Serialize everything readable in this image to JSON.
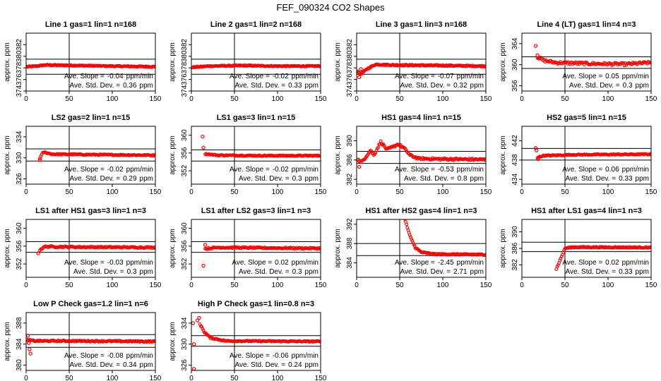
{
  "figure_title": "FEF_090324  CO2 Shapes",
  "chart_data": [
    {
      "type": "scatter",
      "title": "Line 1 gas=1 lin=1 n=168",
      "ylabel": "approx. ppm",
      "xlim": [
        0,
        150
      ],
      "ylim": [
        374,
        384
      ],
      "yticks": [
        374,
        376,
        378,
        380,
        382
      ],
      "xticks": [
        0,
        50,
        100,
        150
      ],
      "hlines": [
        376.9,
        379.5
      ],
      "vline": 50,
      "series_color": "#ff0000",
      "x_start": 1,
      "x_end": 150,
      "n_points": 168,
      "profile": [
        [
          1,
          378.2
        ],
        [
          12,
          378.3
        ],
        [
          22,
          378.5
        ],
        [
          60,
          378.4
        ],
        [
          100,
          378.3
        ],
        [
          150,
          378.2
        ]
      ],
      "noise": 0.08,
      "outliers": [],
      "slope_label": "Ave. Slope =",
      "slope_value": "-0.04",
      "slope_unit": "ppm/min",
      "sd_label": "Ave. Std. Dev. =",
      "sd_value": "0.36",
      "sd_unit": "ppm"
    },
    {
      "type": "scatter",
      "title": "Line 2 gas=1 lin=2 n=168",
      "ylabel": "approx. ppm",
      "xlim": [
        0,
        150
      ],
      "ylim": [
        374,
        384
      ],
      "yticks": [
        374,
        376,
        378,
        380,
        382
      ],
      "xticks": [
        0,
        50,
        100,
        150
      ],
      "hlines": [
        376.9,
        379.5
      ],
      "vline": 50,
      "series_color": "#ff0000",
      "x_start": 1,
      "x_end": 150,
      "n_points": 168,
      "profile": [
        [
          1,
          378.1
        ],
        [
          20,
          378.3
        ],
        [
          60,
          378.4
        ],
        [
          100,
          378.3
        ],
        [
          150,
          378.3
        ]
      ],
      "noise": 0.08,
      "outliers": [],
      "slope_label": "Ave. Slope =",
      "slope_value": "-0.02",
      "slope_unit": "ppm/min",
      "sd_label": "Ave. Std. Dev. =",
      "sd_value": "0.33",
      "sd_unit": "ppm"
    },
    {
      "type": "scatter",
      "title": "Line 3 gas=1 lin=3 n=168",
      "ylabel": "approx. ppm",
      "xlim": [
        0,
        150
      ],
      "ylim": [
        374,
        384
      ],
      "yticks": [
        374,
        376,
        378,
        380,
        382
      ],
      "xticks": [
        0,
        50,
        100,
        150
      ],
      "hlines": [
        376.9,
        379.5
      ],
      "vline": 50,
      "series_color": "#ff0000",
      "x_start": 1,
      "x_end": 150,
      "n_points": 168,
      "profile": [
        [
          1,
          377.5
        ],
        [
          4,
          376.9
        ],
        [
          7,
          377.2
        ],
        [
          12,
          377.8
        ],
        [
          22,
          378.6
        ],
        [
          40,
          378.5
        ],
        [
          100,
          378.4
        ],
        [
          150,
          378.3
        ]
      ],
      "noise": 0.1,
      "outliers": [
        [
          3,
          376.4
        ],
        [
          5,
          377.8
        ]
      ],
      "slope_label": "Ave. Slope =",
      "slope_value": "-0.07",
      "slope_unit": "ppm/min",
      "sd_label": "Ave. Std. Dev. =",
      "sd_value": "0.32",
      "sd_unit": "ppm"
    },
    {
      "type": "scatter",
      "title": "Line 4 (LT) gas=1 lin=4 n=3",
      "ylabel": "approx. ppm",
      "xlim": [
        0,
        150
      ],
      "ylim": [
        355,
        366
      ],
      "yticks": [
        356,
        360,
        364
      ],
      "xticks": [
        0,
        50,
        100,
        150
      ],
      "hlines": [
        359.3,
        361.5
      ],
      "vline": 50,
      "series_color": "#ff0000",
      "x_start": 18,
      "x_end": 150,
      "n_points": 120,
      "profile": [
        [
          18,
          361.5
        ],
        [
          25,
          360.8
        ],
        [
          40,
          360.4
        ],
        [
          80,
          360.2
        ],
        [
          120,
          360.1
        ],
        [
          150,
          360.4
        ]
      ],
      "noise": 0.25,
      "outliers": [
        [
          16,
          363.6
        ],
        [
          18,
          361.8
        ],
        [
          20,
          361.2
        ]
      ],
      "slope_label": "Ave. Slope =",
      "slope_value": "0.05",
      "slope_unit": "ppm/min",
      "sd_label": "Ave. Std. Dev. =",
      "sd_value": "0.3",
      "sd_unit": "ppm"
    },
    {
      "type": "scatter",
      "title": "LS2 gas=2 lin=1 n=15",
      "ylabel": "approx. ppm",
      "xlim": [
        0,
        150
      ],
      "ylim": [
        325,
        336
      ],
      "yticks": [
        326,
        330,
        334
      ],
      "xticks": [
        0,
        50,
        100,
        150
      ],
      "hlines": [
        329.4,
        331.7
      ],
      "vline": 50,
      "series_color": "#ff0000",
      "x_start": 16,
      "x_end": 150,
      "n_points": 120,
      "profile": [
        [
          16,
          330.0
        ],
        [
          20,
          331.1
        ],
        [
          30,
          330.7
        ],
        [
          80,
          330.6
        ],
        [
          150,
          330.5
        ]
      ],
      "noise": 0.1,
      "outliers": [
        [
          16,
          329.6
        ]
      ],
      "slope_label": "Ave. Slope =",
      "slope_value": "-0.02",
      "slope_unit": "ppm/min",
      "sd_label": "Ave. Std. Dev. =",
      "sd_value": "0.29",
      "sd_unit": "ppm"
    },
    {
      "type": "scatter",
      "title": "LS1 gas=3 lin=1 n=15",
      "ylabel": "approx. ppm",
      "xlim": [
        0,
        150
      ],
      "ylim": [
        349,
        362
      ],
      "yticks": [
        352,
        356,
        360
      ],
      "xticks": [
        0,
        50,
        100,
        150
      ],
      "hlines": [
        354.2,
        356.7
      ],
      "vline": 50,
      "series_color": "#ff0000",
      "x_start": 16,
      "x_end": 150,
      "n_points": 120,
      "profile": [
        [
          16,
          355.8
        ],
        [
          30,
          355.5
        ],
        [
          80,
          355.4
        ],
        [
          150,
          355.4
        ]
      ],
      "noise": 0.1,
      "outliers": [
        [
          13,
          359.7
        ],
        [
          14,
          357.2
        ]
      ],
      "slope_label": "Ave. Slope =",
      "slope_value": "-0.02",
      "slope_unit": "ppm/min",
      "sd_label": "Ave. Std. Dev. =",
      "sd_value": "0.3",
      "sd_unit": "ppm"
    },
    {
      "type": "scatter",
      "title": "HS1 gas=4 lin=1 n=15",
      "ylabel": "approx. ppm",
      "xlim": [
        0,
        150
      ],
      "ylim": [
        381,
        393
      ],
      "yticks": [
        382,
        386,
        390
      ],
      "xticks": [
        0,
        50,
        100,
        150
      ],
      "hlines": [
        385.3,
        387.8
      ],
      "vline": 50,
      "series_color": "#ff0000",
      "x_start": 1,
      "x_end": 150,
      "n_points": 150,
      "profile": [
        [
          1,
          386.2
        ],
        [
          5,
          385.5
        ],
        [
          10,
          386.5
        ],
        [
          16,
          388.0
        ],
        [
          20,
          387.0
        ],
        [
          28,
          389.8
        ],
        [
          35,
          388.2
        ],
        [
          42,
          388.7
        ],
        [
          48,
          389.3
        ],
        [
          55,
          388.5
        ],
        [
          62,
          387.0
        ],
        [
          72,
          386.3
        ],
        [
          100,
          386.2
        ],
        [
          150,
          386.1
        ]
      ],
      "noise": 0.2,
      "outliers": [
        [
          3,
          384.6
        ]
      ],
      "slope_label": "Ave. Slope =",
      "slope_value": "-0.53",
      "slope_unit": "ppm/min",
      "sd_label": "Ave. Std. Dev. =",
      "sd_value": "0.8",
      "sd_unit": "ppm"
    },
    {
      "type": "scatter",
      "title": "HS2 gas=5 lin=1 n=15",
      "ylabel": "approx. ppm",
      "xlim": [
        0,
        150
      ],
      "ylim": [
        433,
        445
      ],
      "yticks": [
        434,
        438,
        442
      ],
      "xticks": [
        0,
        50,
        100,
        150
      ],
      "hlines": [
        438.0,
        440.4
      ],
      "vline": 50,
      "series_color": "#ff0000",
      "x_start": 18,
      "x_end": 150,
      "n_points": 120,
      "profile": [
        [
          18,
          438.5
        ],
        [
          25,
          438.9
        ],
        [
          60,
          439.1
        ],
        [
          150,
          439.2
        ]
      ],
      "noise": 0.1,
      "outliers": [
        [
          16,
          440.5
        ],
        [
          17,
          440.0
        ],
        [
          19,
          438.2
        ]
      ],
      "slope_label": "Ave. Slope =",
      "slope_value": "0.06",
      "slope_unit": "ppm/min",
      "sd_label": "Ave. Std. Dev. =",
      "sd_value": "0.33",
      "sd_unit": "ppm"
    },
    {
      "type": "scatter",
      "title": "LS1 after HS1 gas=3 lin=1 n=3",
      "ylabel": "approx. ppm",
      "xlim": [
        0,
        150
      ],
      "ylim": [
        349,
        362
      ],
      "yticks": [
        352,
        356,
        360
      ],
      "xticks": [
        0,
        50,
        100,
        150
      ],
      "hlines": [
        354.6,
        357.0
      ],
      "vline": 50,
      "series_color": "#ff0000",
      "x_start": 16,
      "x_end": 150,
      "n_points": 120,
      "profile": [
        [
          16,
          355.2
        ],
        [
          22,
          355.9
        ],
        [
          60,
          355.8
        ],
        [
          150,
          355.7
        ]
      ],
      "noise": 0.15,
      "outliers": [
        [
          14,
          354.4
        ]
      ],
      "slope_label": "Ave. Slope =",
      "slope_value": "-0.03",
      "slope_unit": "ppm/min",
      "sd_label": "Ave. Std. Dev. =",
      "sd_value": "0.3",
      "sd_unit": "ppm"
    },
    {
      "type": "scatter",
      "title": "LS1 after LS2 gas=3 lin=1 n=3",
      "ylabel": "approx. ppm",
      "xlim": [
        0,
        150
      ],
      "ylim": [
        349,
        362
      ],
      "yticks": [
        352,
        356,
        360
      ],
      "xticks": [
        0,
        50,
        100,
        150
      ],
      "hlines": [
        354.6,
        357.0
      ],
      "vline": 50,
      "series_color": "#ff0000",
      "x_start": 16,
      "x_end": 150,
      "n_points": 120,
      "profile": [
        [
          16,
          355.4
        ],
        [
          30,
          355.7
        ],
        [
          80,
          355.6
        ],
        [
          150,
          355.5
        ]
      ],
      "noise": 0.15,
      "outliers": [
        [
          14,
          351.6
        ],
        [
          16,
          356.3
        ]
      ],
      "slope_label": "Ave. Slope =",
      "slope_value": "0.02",
      "slope_unit": "ppm/min",
      "sd_label": "Ave. Std. Dev. =",
      "sd_value": "0.3",
      "sd_unit": "ppm"
    },
    {
      "type": "scatter",
      "title": "HS1 after HS2 gas=4 lin=1 n=3",
      "ylabel": "approx. ppm",
      "xlim": [
        0,
        150
      ],
      "ylim": [
        381,
        393
      ],
      "yticks": [
        384,
        388,
        392
      ],
      "xticks": [
        0,
        50,
        100,
        150
      ],
      "hlines": [
        385.5,
        388.0
      ],
      "vline": 50,
      "series_color": "#ff0000",
      "x_start": 56,
      "x_end": 150,
      "n_points": 100,
      "profile": [
        [
          56,
          393.0
        ],
        [
          62,
          389.5
        ],
        [
          68,
          387.2
        ],
        [
          75,
          386.2
        ],
        [
          90,
          385.8
        ],
        [
          150,
          385.7
        ]
      ],
      "noise": 0.12,
      "outliers": [],
      "slope_label": "Ave. Slope =",
      "slope_value": "-2.45",
      "slope_unit": "ppm/min",
      "sd_label": "Ave. Std. Dev. =",
      "sd_value": "2.71",
      "sd_unit": "ppm"
    },
    {
      "type": "scatter",
      "title": "HS1 after LS1 gas=4 lin=1 n=3",
      "ylabel": "approx. ppm",
      "xlim": [
        0,
        150
      ],
      "ylim": [
        379,
        393
      ],
      "yticks": [
        382,
        386,
        390
      ],
      "xticks": [
        0,
        50,
        100,
        150
      ],
      "hlines": [
        385.2,
        387.5
      ],
      "vline": 50,
      "series_color": "#ff0000",
      "x_start": 40,
      "x_end": 150,
      "n_points": 110,
      "profile": [
        [
          40,
          381.0
        ],
        [
          45,
          383.5
        ],
        [
          50,
          386.0
        ],
        [
          60,
          386.3
        ],
        [
          150,
          386.2
        ]
      ],
      "noise": 0.12,
      "outliers": [],
      "slope_label": "Ave. Slope =",
      "slope_value": "0.02",
      "slope_unit": "ppm/min",
      "sd_label": "Ave. Std. Dev. =",
      "sd_value": "0.33",
      "sd_unit": "ppm"
    },
    {
      "type": "scatter",
      "title": "Low P Check gas=1.2 lin=1 n=6",
      "ylabel": "approx. ppm",
      "xlim": [
        0,
        150
      ],
      "ylim": [
        379,
        390
      ],
      "yticks": [
        380,
        384,
        388
      ],
      "xticks": [
        0,
        50,
        100,
        150
      ],
      "hlines": [
        383.4,
        385.8
      ],
      "vline": 50,
      "series_color": "#ff0000",
      "x_start": 1,
      "x_end": 150,
      "n_points": 150,
      "profile": [
        [
          1,
          384.8
        ],
        [
          10,
          384.6
        ],
        [
          50,
          384.6
        ],
        [
          150,
          384.5
        ]
      ],
      "noise": 0.12,
      "outliers": [
        [
          2,
          385.6
        ],
        [
          4,
          383.0
        ],
        [
          5,
          382.2
        ],
        [
          3,
          384.2
        ]
      ],
      "slope_label": "Ave. Slope =",
      "slope_value": "-0.08",
      "slope_unit": "ppm/min",
      "sd_label": "Ave. Std. Dev. =",
      "sd_value": "0.34",
      "sd_unit": "ppm"
    },
    {
      "type": "scatter",
      "title": "High P Check gas=1 lin=0.8 n=3",
      "ylabel": "approx. ppm",
      "xlim": [
        0,
        150
      ],
      "ylim": [
        325,
        336
      ],
      "yticks": [
        326,
        330,
        334
      ],
      "xticks": [
        0,
        50,
        100,
        150
      ],
      "hlines": [
        329.6,
        331.6
      ],
      "vline": 50,
      "series_color": "#ff0000",
      "x_start": 10,
      "x_end": 150,
      "n_points": 140,
      "profile": [
        [
          10,
          333.8
        ],
        [
          15,
          332.3
        ],
        [
          22,
          331.2
        ],
        [
          40,
          330.6
        ],
        [
          150,
          330.5
        ]
      ],
      "noise": 0.1,
      "outliers": [
        [
          2,
          334.0
        ],
        [
          3,
          330.0
        ],
        [
          7,
          334.5
        ],
        [
          9,
          335.0
        ],
        [
          3,
          325.3
        ]
      ],
      "slope_label": "Ave. Slope =",
      "slope_value": "-0.06",
      "slope_unit": "ppm/min",
      "sd_label": "Ave. Std. Dev. =",
      "sd_value": "0.24",
      "sd_unit": "ppm"
    }
  ]
}
